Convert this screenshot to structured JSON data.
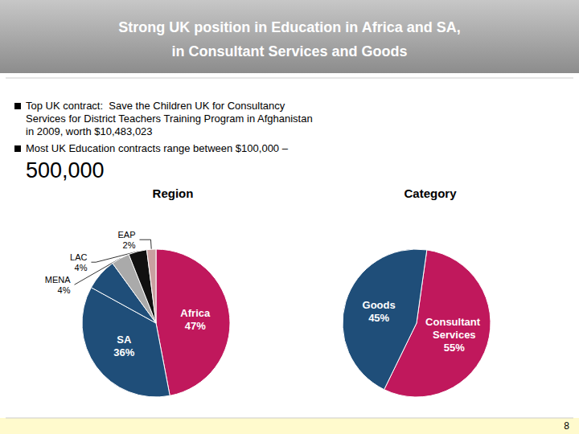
{
  "title": "Strong UK position in Education in Africa and SA,\nin Consultant Services and Goods",
  "annotations": [
    "Top UK contract:  Save the Children UK for Consultancy",
    "Services for District Teachers Training Program in Afghanistan",
    "in 2009, worth $10,483,023",
    "Most UK Education contracts range between $100,000 –",
    "500,000",
    "8"
  ],
  "chart_data": [
    {
      "type": "pie",
      "title": "Region",
      "categories": [
        "Africa",
        "SA",
        null,
        "MENA",
        "LAC",
        "EAP"
      ],
      "values": [
        47,
        36,
        7,
        4,
        4,
        2
      ],
      "value_labels": [
        "47%",
        "36%",
        null,
        "4%",
        "4%",
        "2%"
      ],
      "colors": [
        "#C0185C",
        "#1F4E79",
        "#1F4E79",
        "#AAAAAA",
        "#111111",
        "#C9A0A0"
      ],
      "data_labels": true
    },
    {
      "type": "pie",
      "title": "Category",
      "categories": [
        "Consultant Services",
        "Goods"
      ],
      "values": [
        55,
        45
      ],
      "value_labels": [
        "55%",
        "45%"
      ],
      "colors": [
        "#C0185C",
        "#1F4E79"
      ],
      "data_labels": true
    }
  ]
}
